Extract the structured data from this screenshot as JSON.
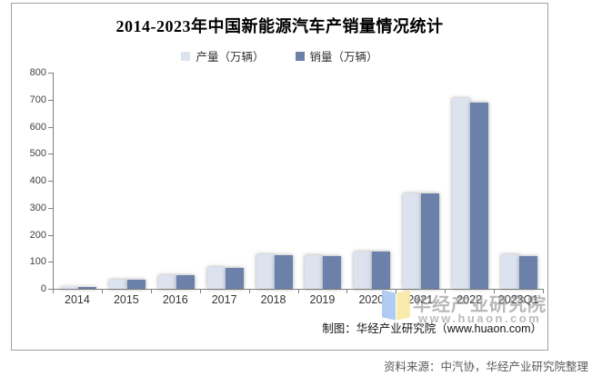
{
  "chart_data": {
    "type": "bar",
    "title": "2014-2023年中国新能源汽车产销量情况统计",
    "categories": [
      "2014",
      "2015",
      "2016",
      "2017",
      "2018",
      "2019",
      "2020",
      "2021",
      "2022",
      "2023Q1"
    ],
    "series": [
      {
        "name": "产量（万辆）",
        "color": "#dce2ee",
        "values": [
          7.8,
          34.0,
          51.7,
          79.4,
          127.0,
          124.2,
          136.6,
          354.5,
          705.8,
          129.0
        ]
      },
      {
        "name": "销量（万辆）",
        "color": "#6b81a9",
        "values": [
          7.5,
          33.1,
          50.7,
          77.7,
          125.6,
          120.6,
          136.7,
          352.1,
          688.7,
          122.0
        ]
      }
    ],
    "ylim": [
      0,
      800
    ],
    "ytick_step": 100,
    "grid": false,
    "legend_position": "top",
    "xlabel": "",
    "ylabel": ""
  },
  "watermark": {
    "org_name": "华经产业研究院",
    "url": "www.huaon.com",
    "logo": "open-book-logo",
    "logo_colors": {
      "left_page": "#a9c7f2",
      "right_page": "#f8e9a4"
    }
  },
  "footer": {
    "credit": "制图：华经产业研究院（www.huaon.com）",
    "source": "资料来源：中汽协，华经产业研究院整理"
  },
  "colors": {
    "production_bar": "#dce2ee",
    "sales_bar": "#6b81a9",
    "axis": "#7f7f7f",
    "border": "#a0a0a0",
    "tick_text": "#404040"
  }
}
